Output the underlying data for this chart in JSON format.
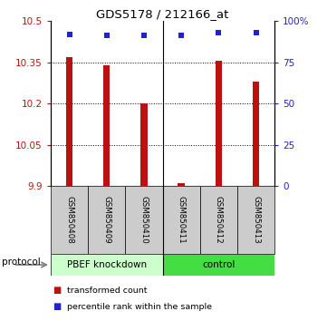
{
  "title": "GDS5178 / 212166_at",
  "samples": [
    "GSM850408",
    "GSM850409",
    "GSM850410",
    "GSM850411",
    "GSM850412",
    "GSM850413"
  ],
  "bar_values": [
    10.37,
    10.34,
    10.2,
    9.91,
    10.355,
    10.28
  ],
  "percentile_values": [
    92,
    91,
    91,
    91,
    93,
    93
  ],
  "ylim_left": [
    9.9,
    10.5
  ],
  "ylim_right": [
    0,
    100
  ],
  "yticks_left": [
    9.9,
    10.05,
    10.2,
    10.35,
    10.5
  ],
  "yticks_right": [
    0,
    25,
    50,
    75,
    100
  ],
  "bar_color": "#bb1111",
  "dot_color": "#2222cc",
  "bar_bottom": 9.9,
  "groups": [
    {
      "label": "PBEF knockdown",
      "indices": [
        0,
        1,
        2
      ],
      "color": "#ccffcc"
    },
    {
      "label": "control",
      "indices": [
        3,
        4,
        5
      ],
      "color": "#44dd44"
    }
  ],
  "protocol_label": "protocol",
  "legend_items": [
    {
      "label": "transformed count",
      "color": "#bb1111"
    },
    {
      "label": "percentile rank within the sample",
      "color": "#2222cc"
    }
  ],
  "sample_box_color": "#cccccc",
  "bar_width": 0.18
}
